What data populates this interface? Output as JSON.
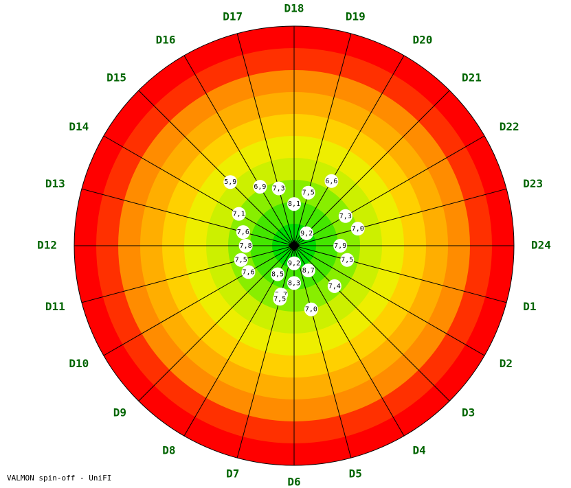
{
  "footer": "VALMON spin-off - UniFI",
  "chart_data": {
    "type": "radar",
    "directions": [
      "D1",
      "D2",
      "D3",
      "D4",
      "D5",
      "D6",
      "D7",
      "D8",
      "D9",
      "D10",
      "D11",
      "D12",
      "D13",
      "D14",
      "D15",
      "D16",
      "D17",
      "D18",
      "D19",
      "D20",
      "D21",
      "D22",
      "D23",
      "D24"
    ],
    "zone_colors": [
      "#00dd00",
      "#44e600",
      "#88ee00",
      "#ccf000",
      "#eeee00",
      "#ffd000",
      "#ffae00",
      "#ff8c00",
      "#ff3000",
      "#ff0000"
    ],
    "ring_max": 10,
    "points": [
      {
        "direction": "D19",
        "value": 7.5,
        "label": "7,5"
      },
      {
        "direction": "D18",
        "value": 8.1,
        "label": "8,1"
      },
      {
        "direction": "D17",
        "value": 7.3,
        "label": "7,3"
      },
      {
        "direction": "D16",
        "value": 6.9,
        "label": "6,9"
      },
      {
        "direction": "D15",
        "value": 5.9,
        "label": "5,9"
      },
      {
        "direction": "D20",
        "value": 6.6,
        "label": "6,6"
      },
      {
        "direction": "D14",
        "value": 7.1,
        "label": "7,1"
      },
      {
        "direction": "D22",
        "value": 7.3,
        "label": "7,3"
      },
      {
        "direction": "D23",
        "value": 7.0,
        "label": "7,0"
      },
      {
        "direction": "D13",
        "value": 7.6,
        "label": "7,6"
      },
      {
        "direction": "D21",
        "value": 9.2,
        "label": "9,2"
      },
      {
        "direction": "D12",
        "value": 7.8,
        "label": "7,8"
      },
      {
        "direction": "D24",
        "value": 7.9,
        "label": "7,9"
      },
      {
        "direction": "D11",
        "value": 7.5,
        "label": "7,5"
      },
      {
        "direction": "D1",
        "value": 7.5,
        "label": "7,5"
      },
      {
        "direction": "D10",
        "value": 7.6,
        "label": "7,6"
      },
      {
        "direction": "D8",
        "value": 8.5,
        "label": "8,5"
      },
      {
        "direction": "D7",
        "value": 7.7,
        "label": "7,7"
      },
      {
        "direction": "D6",
        "value": 9.2,
        "label": "9,2"
      },
      {
        "direction": "D5",
        "value": 7.0,
        "label": "7,0"
      },
      {
        "direction": "D4",
        "value": 8.7,
        "label": "8,7"
      },
      {
        "direction": "D3",
        "value": 7.4,
        "label": "7,4"
      },
      {
        "direction": "D6",
        "value": 8.3,
        "label": "8,3"
      },
      {
        "direction": "D7",
        "value": 7.5,
        "label": "7,5"
      }
    ]
  }
}
